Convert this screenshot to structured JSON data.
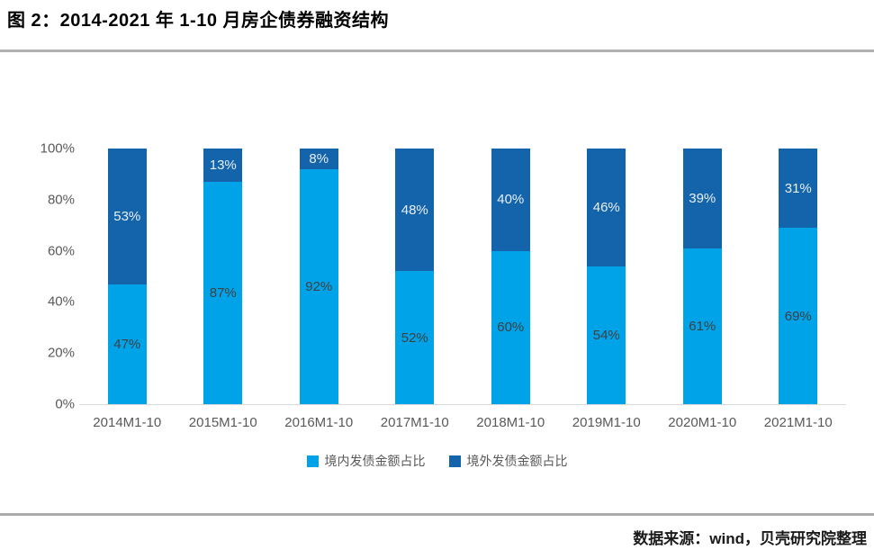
{
  "header": {
    "title": "图 2：2014-2021 年 1-10 月房企债券融资结构"
  },
  "footer": {
    "source": "数据来源：wind，贝壳研究院整理"
  },
  "colors": {
    "domestic_bar": "#00A2E8",
    "overseas_bar": "#1464AB",
    "divider_gray": "#ababab",
    "axis_line": "#d9d9d9",
    "tick_text": "#595959"
  },
  "chart_data": {
    "type": "bar",
    "stacked": true,
    "title": "2014-2021 年 1-10 月房企债券融资结构",
    "categories": [
      "2014M1-10",
      "2015M1-10",
      "2016M1-10",
      "2017M1-10",
      "2018M1-10",
      "2019M1-10",
      "2020M1-10",
      "2021M1-10"
    ],
    "series": [
      {
        "name": "境内发债金额占比",
        "color": "#00A2E8",
        "label_color": "#404040",
        "values": [
          47,
          87,
          92,
          52,
          60,
          54,
          61,
          69
        ]
      },
      {
        "name": "境外发债金额占比",
        "color": "#1464AB",
        "label_color": "#E8EFF8",
        "values": [
          53,
          13,
          8,
          48,
          40,
          46,
          39,
          31
        ]
      }
    ],
    "value_suffix": "%",
    "yticks": [
      "0%",
      "20%",
      "40%",
      "60%",
      "80%",
      "100%"
    ],
    "ylim": [
      0,
      100
    ],
    "xlabel": "",
    "ylabel": "",
    "grid": false,
    "legend_position": "bottom"
  }
}
